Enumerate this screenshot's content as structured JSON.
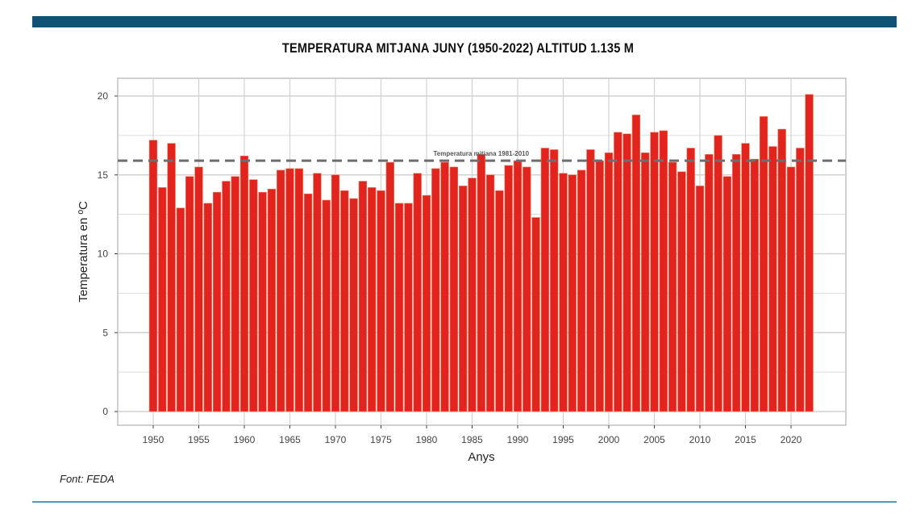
{
  "page": {
    "source_note": "Font: FEDA"
  },
  "colors": {
    "bar": "#e3241e",
    "bar_edge": "#f07a5a",
    "reference_line": "#6e6e6e",
    "grid": "#d2d2d2",
    "panel_border": "#a0a0a0",
    "header_band": "#0f5275",
    "footer_rule": "#4e9ab7"
  },
  "chart_data": {
    "type": "bar",
    "title": "TEMPERATURA MITJANA JUNY (1950-2022) ALTITUD 1.135 M",
    "xlabel": "Anys",
    "ylabel": "Temperatura en ºC",
    "ylim": [
      0,
      20
    ],
    "yticks": [
      0,
      5,
      10,
      15,
      20
    ],
    "xticks": [
      1950,
      1955,
      1960,
      1965,
      1970,
      1975,
      1980,
      1985,
      1990,
      1995,
      2000,
      2005,
      2010,
      2015,
      2020
    ],
    "grid": true,
    "reference_line": {
      "label": "Temperatura mitjana 1981-2010",
      "value": 15.9,
      "style": "dashed"
    },
    "x": [
      1950,
      1951,
      1952,
      1953,
      1954,
      1955,
      1956,
      1957,
      1958,
      1959,
      1960,
      1961,
      1962,
      1963,
      1964,
      1965,
      1966,
      1967,
      1968,
      1969,
      1970,
      1971,
      1972,
      1973,
      1974,
      1975,
      1976,
      1977,
      1978,
      1979,
      1980,
      1981,
      1982,
      1983,
      1984,
      1985,
      1986,
      1987,
      1988,
      1989,
      1990,
      1991,
      1992,
      1993,
      1994,
      1995,
      1996,
      1997,
      1998,
      1999,
      2000,
      2001,
      2002,
      2003,
      2004,
      2005,
      2006,
      2007,
      2008,
      2009,
      2010,
      2011,
      2012,
      2013,
      2014,
      2015,
      2016,
      2017,
      2018,
      2019,
      2020,
      2021,
      2022
    ],
    "values": [
      17.2,
      14.2,
      17.0,
      12.9,
      14.9,
      15.5,
      13.2,
      13.9,
      14.6,
      14.9,
      16.2,
      14.7,
      13.9,
      14.1,
      15.3,
      15.4,
      15.4,
      13.8,
      15.1,
      13.4,
      15.0,
      14.0,
      13.5,
      14.6,
      14.2,
      14.0,
      15.8,
      13.2,
      13.2,
      15.1,
      13.7,
      15.4,
      15.8,
      15.5,
      14.3,
      14.8,
      16.3,
      15.0,
      14.0,
      15.6,
      15.9,
      15.5,
      12.3,
      16.7,
      16.6,
      15.1,
      15.0,
      15.3,
      16.6,
      15.9,
      16.4,
      17.7,
      17.6,
      18.8,
      16.4,
      17.7,
      17.8,
      15.8,
      15.2,
      16.7,
      14.3,
      16.3,
      17.5,
      14.9,
      16.3,
      17.0,
      16.0,
      18.7,
      16.8,
      17.9,
      15.5,
      16.7,
      20.1
    ]
  }
}
